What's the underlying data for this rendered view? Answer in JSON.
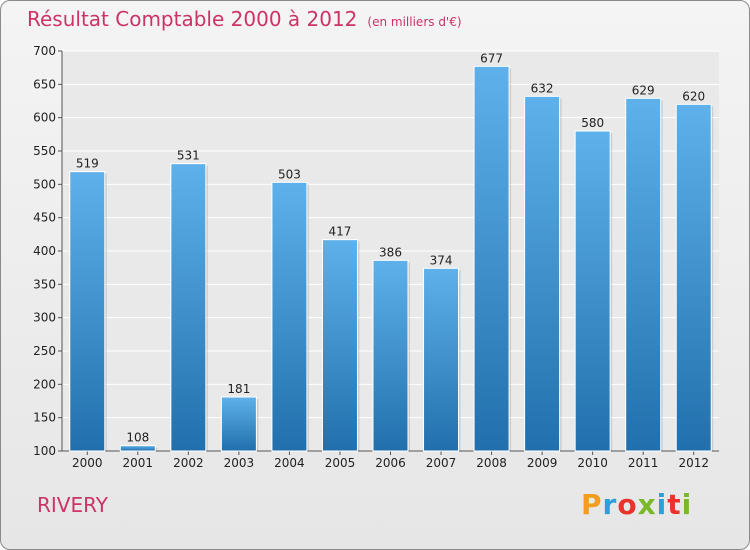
{
  "title": "Résultat Comptable 2000 à 2012",
  "unit": "(en milliers d'€)",
  "place": "RIVERY",
  "logo": {
    "text": "Proxiti",
    "colors": [
      "#f39c1f",
      "#2d9fd9",
      "#e8342b",
      "#7ab829",
      "#2d9fd9",
      "#e8342b",
      "#7ab829"
    ]
  },
  "colors": {
    "title": "#cc3366",
    "bar_top": "#5eb1ea",
    "bar_bottom": "#2170ad",
    "grid": "#ffffff",
    "background": "#ebebeb"
  },
  "chart_data": {
    "type": "bar",
    "title": "Résultat Comptable 2000 à 2012",
    "xlabel": "",
    "ylabel": "(en milliers d'€)",
    "categories": [
      "2000",
      "2001",
      "2002",
      "2003",
      "2004",
      "2005",
      "2006",
      "2007",
      "2008",
      "2009",
      "2010",
      "2011",
      "2012"
    ],
    "values": [
      519,
      108,
      531,
      181,
      503,
      417,
      386,
      374,
      677,
      632,
      580,
      629,
      620
    ],
    "ylim": [
      100,
      700
    ],
    "yticks": [
      100,
      150,
      200,
      250,
      300,
      350,
      400,
      450,
      500,
      550,
      600,
      650,
      700
    ],
    "grid": true
  }
}
